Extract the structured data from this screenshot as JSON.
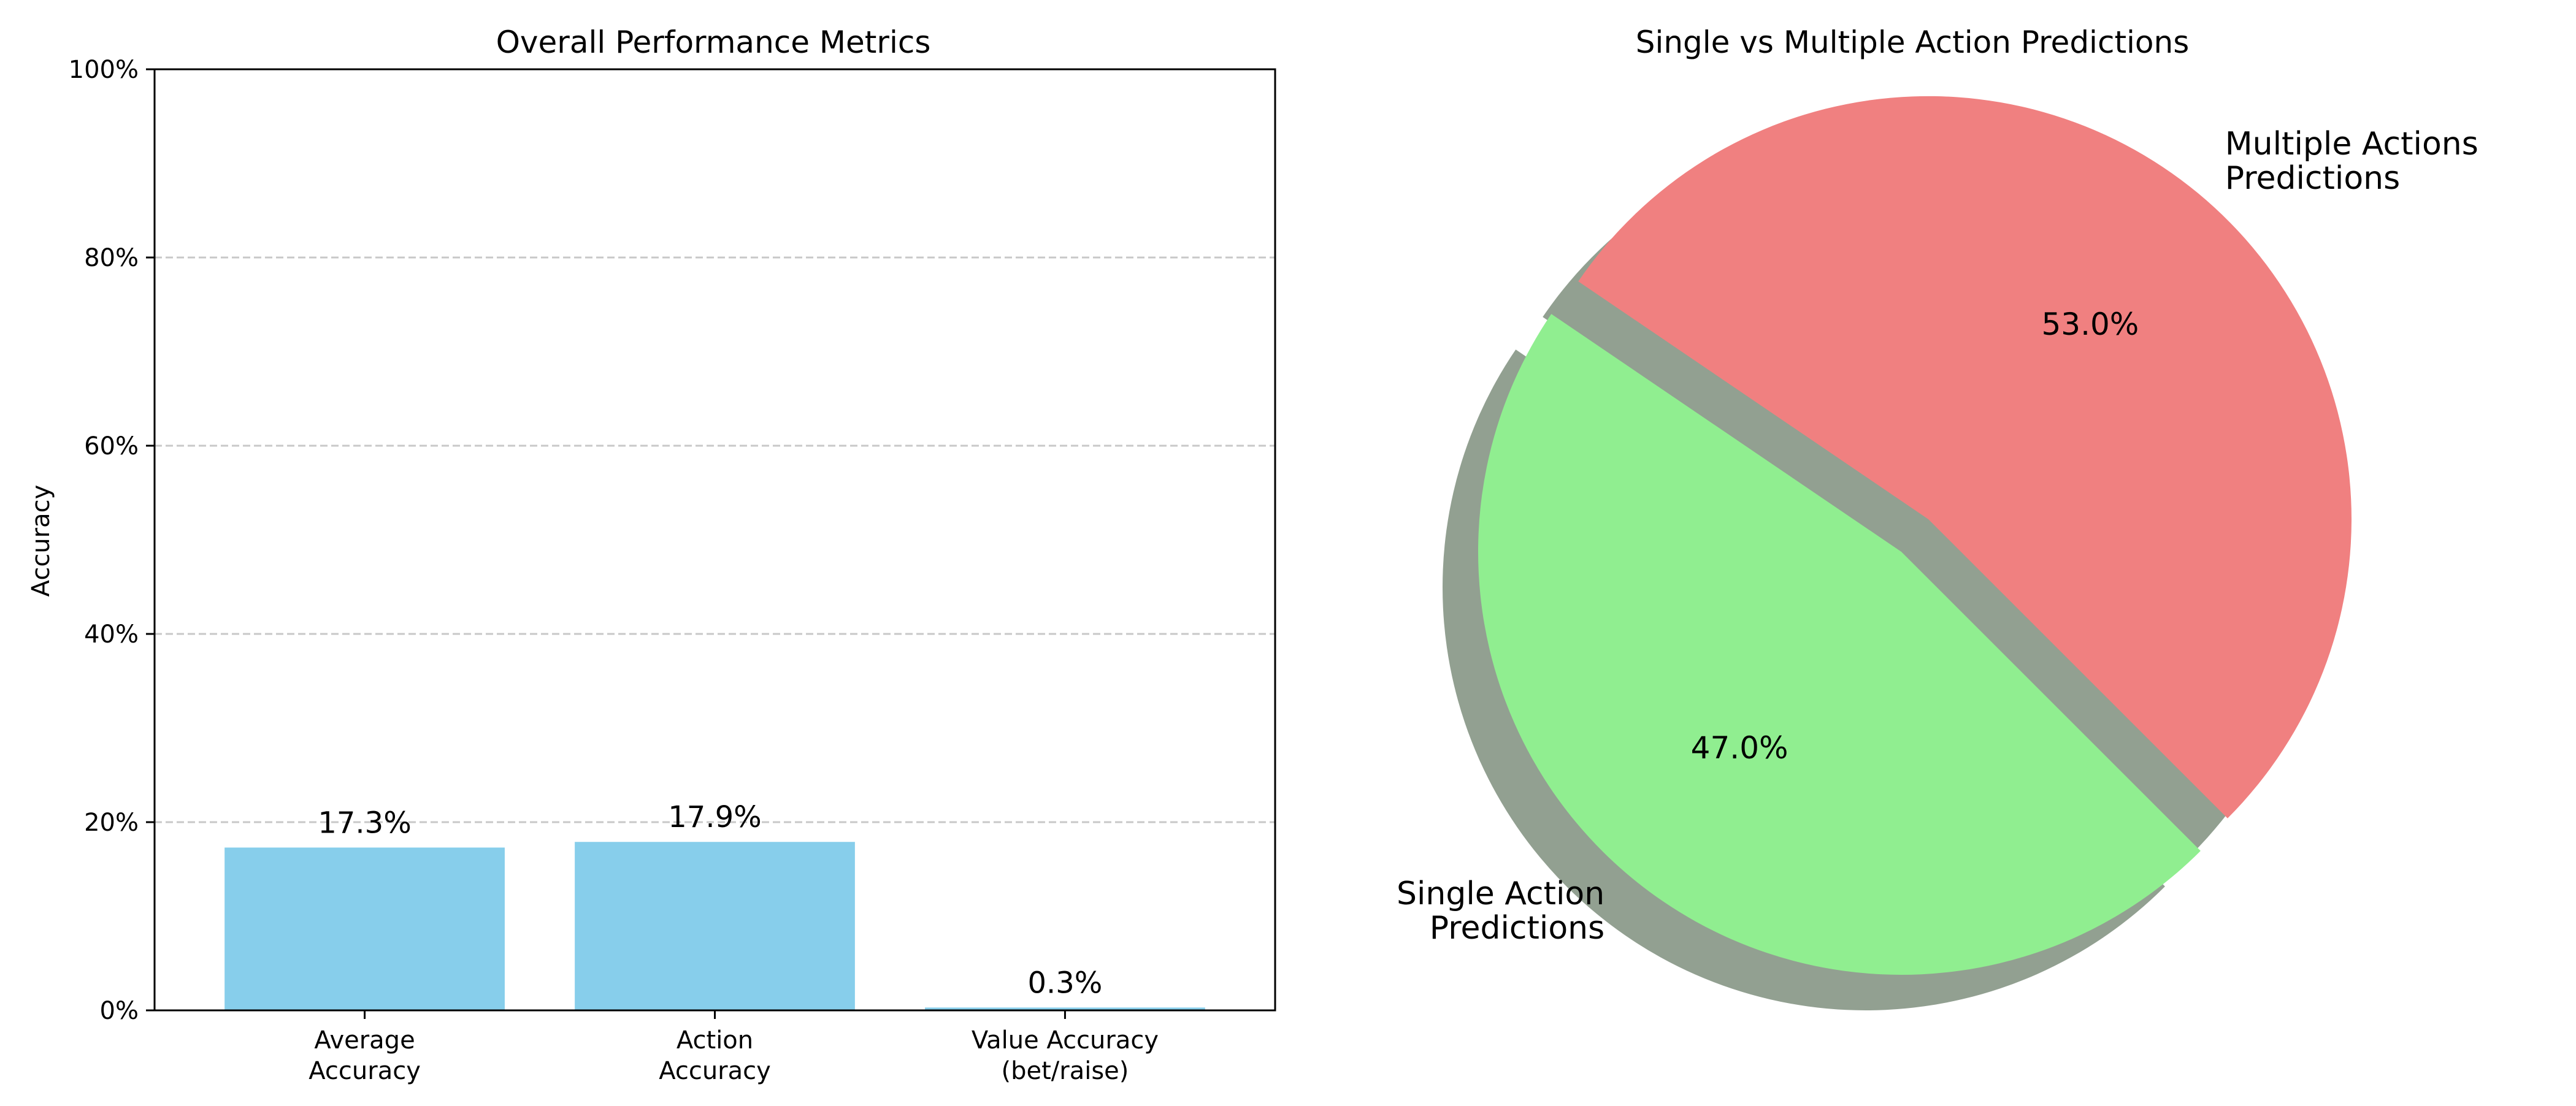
{
  "chart_data": [
    {
      "type": "bar",
      "title": "Overall Performance Metrics",
      "ylabel": "Accuracy",
      "xlabel": "",
      "ylim": [
        0,
        100
      ],
      "yticks": [
        "0%",
        "20%",
        "40%",
        "60%",
        "80%",
        "100%"
      ],
      "categories": [
        [
          "Average",
          "Accuracy"
        ],
        [
          "Action",
          "Accuracy"
        ],
        [
          "Value Accuracy",
          "(bet/raise)"
        ]
      ],
      "values": [
        17.3,
        17.9,
        0.3
      ],
      "data_labels": [
        "17.3%",
        "17.9%",
        "0.3%"
      ],
      "bar_color": "#87ceeb",
      "grid": "y dashed"
    },
    {
      "type": "pie",
      "title": "Single vs Multiple Action Predictions",
      "slices": [
        {
          "label": [
            "Multiple Actions",
            "Predictions"
          ],
          "value": 53.0,
          "pct_label": "53.0%",
          "color": "#f08080",
          "exploded": true
        },
        {
          "label": [
            "Single Action",
            "Predictions"
          ],
          "value": 47.0,
          "pct_label": "47.0%",
          "color": "#90ee90",
          "exploded": false
        }
      ],
      "shadow": true
    }
  ]
}
